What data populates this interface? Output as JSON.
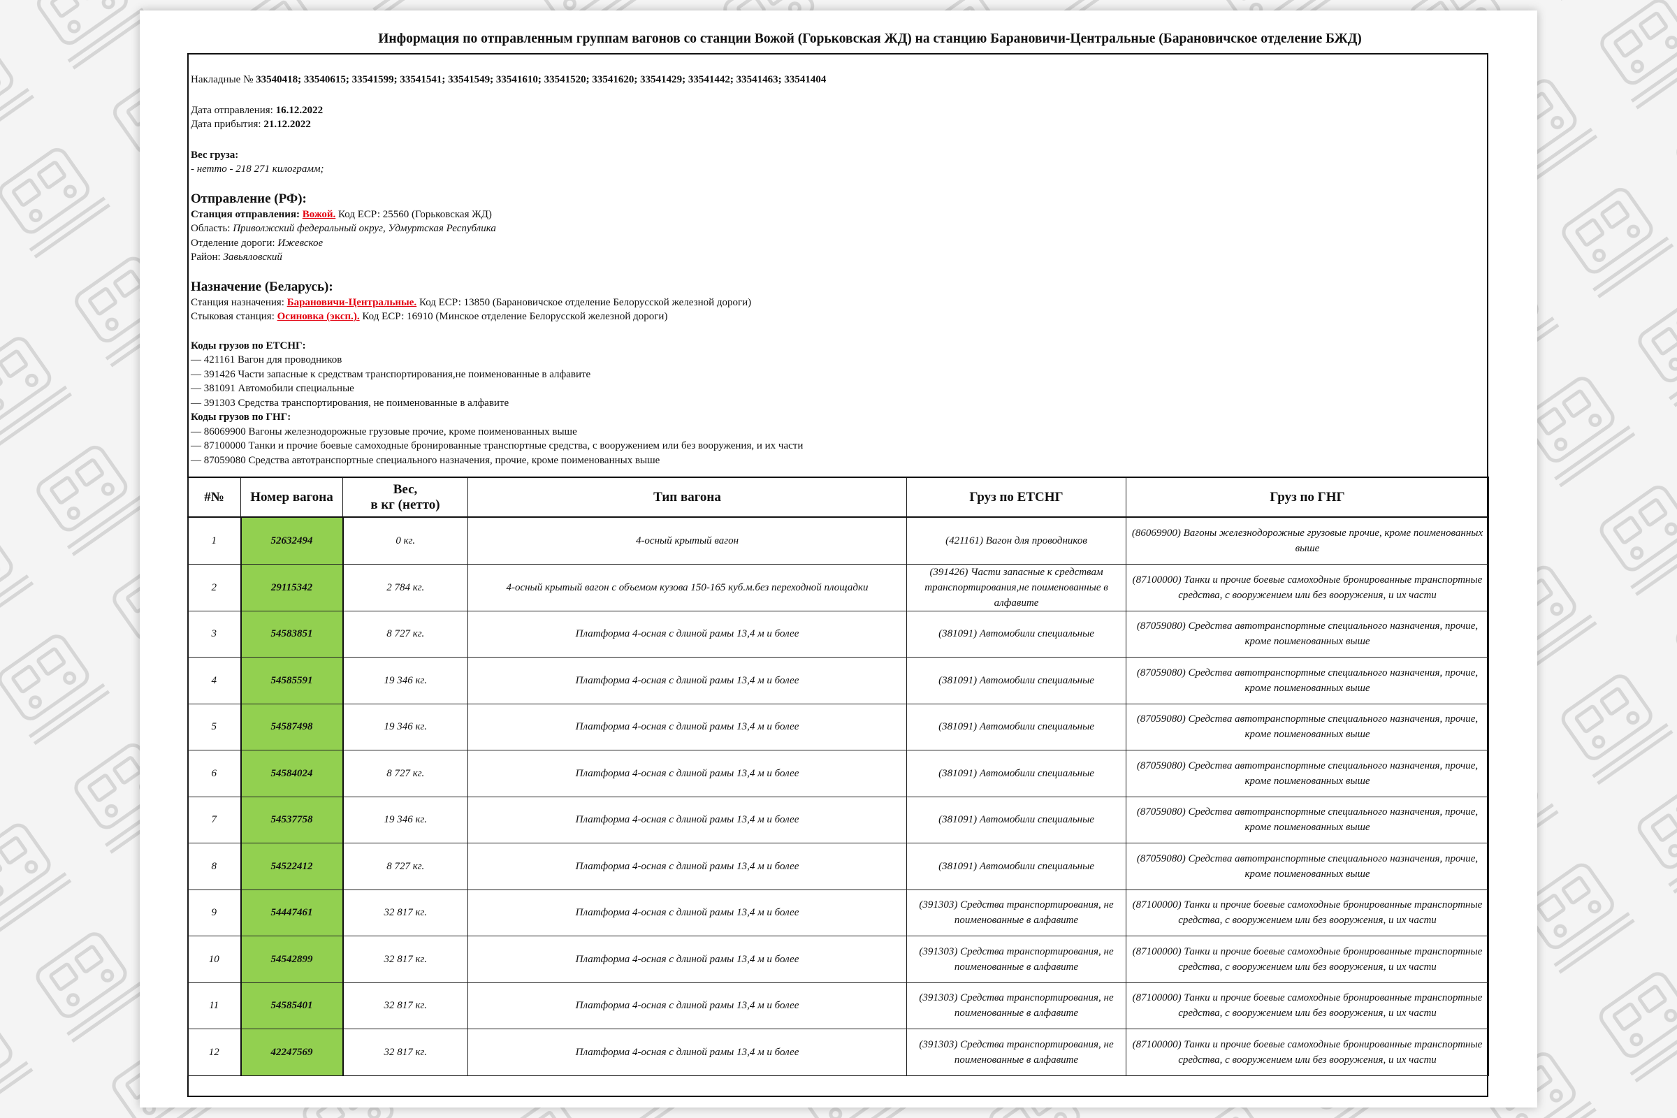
{
  "title": "Информация по отправленным группам вагонов со станции Вожой (Горьковская ЖД) на станцию Барановичи-Центральные (Барановичское отделение БЖД)",
  "waybills": {
    "label": "Накладные № ",
    "value": "33540418; 33540615; 33541599; 33541541; 33541549; 33541610; 33541520; 33541620; 33541429; 33541442; 33541463; 33541404"
  },
  "dates": {
    "departure_label": "Дата отправления: ",
    "departure": "16.12.2022",
    "arrival_label": "Дата прибытия: ",
    "arrival": "21.12.2022"
  },
  "weight": {
    "label": "Вес груза:",
    "net": "- нетто - 218 271 килограмм;"
  },
  "origin": {
    "heading": "Отправление (РФ):",
    "station_label": "Станция отправления: ",
    "station": "Вожой.",
    "station_code": " Код ЕСР: 25560 (Горьковская ЖД)",
    "region_label": "Область: ",
    "region": "Приволжский федеральный округ, Удмуртская Республика",
    "division_label": "Отделение дороги: ",
    "division": "Ижевское",
    "district_label": "Район: ",
    "district": "Завьяловский"
  },
  "destination": {
    "heading": "Назначение (Беларусь):",
    "station_label": "Станция назначения: ",
    "station": "Барановичи-Центральные.",
    "station_code": " Код ЕСР: 13850 (Барановичское отделение Белорусской железной дороги)",
    "junction_label": "Стыковая станция: ",
    "junction": "Осиновка (эксп.).",
    "junction_code": " Код ЕСР: 16910 (Минское отделение Белорусской железной дороги)"
  },
  "etsng": {
    "heading": "Коды грузов по ЕТСНГ:",
    "items": [
      "— 421161 Вагон для проводников",
      "— 391426 Части запасные к средствам транспортирования,не поименованные в алфавите",
      "— 381091 Автомобили специальные",
      "— 391303 Средства транспортирования, не поименованные в алфавите"
    ]
  },
  "gng": {
    "heading": "Коды грузов по ГНГ:",
    "items": [
      "— 86069900 Вагоны железнодорожные грузовые прочие, кроме поименованных выше",
      "— 87100000 Танки и прочие боевые самоходные бронированные транспортные средства, с вооружением или без вооружения, и их части",
      "— 87059080 Средства автотранспортные специального назначения, прочие, кроме поименованных выше"
    ]
  },
  "table": {
    "headers": [
      "#№",
      "Номер вагона",
      "Вес,\nв кг (нетто)",
      "Тип вагона",
      "Груз по ЕТСНГ",
      "Груз по ГНГ"
    ],
    "rows": [
      [
        "1",
        "52632494",
        "0 кг.",
        "4-осный крытый вагон",
        "(421161) Вагон для проводников",
        "(86069900) Вагоны железнодорожные грузовые прочие, кроме поименованных выше"
      ],
      [
        "2",
        "29115342",
        "2 784 кг.",
        "4-осный крытый вагон с объемом кузова 150-165 куб.м.без переходной площадки",
        "(391426) Части запасные к средствам транспортирования,не поименованные в алфавите",
        "(87100000) Танки и прочие боевые самоходные бронированные транспортные средства, с вооружением или без вооружения, и их части"
      ],
      [
        "3",
        "54583851",
        "8 727 кг.",
        "Платформа 4-осная с длиной рамы 13,4 м и более",
        "(381091) Автомобили специальные",
        "(87059080) Средства автотранспортные специального назначения, прочие, кроме поименованных выше"
      ],
      [
        "4",
        "54585591",
        "19 346 кг.",
        "Платформа 4-осная с длиной рамы 13,4 м и более",
        "(381091) Автомобили специальные",
        "(87059080) Средства автотранспортные специального назначения, прочие, кроме поименованных выше"
      ],
      [
        "5",
        "54587498",
        "19 346 кг.",
        "Платформа 4-осная с длиной рамы 13,4 м и более",
        "(381091) Автомобили специальные",
        "(87059080) Средства автотранспортные специального назначения, прочие, кроме поименованных выше"
      ],
      [
        "6",
        "54584024",
        "8 727 кг.",
        "Платформа 4-осная с длиной рамы 13,4 м и более",
        "(381091) Автомобили специальные",
        "(87059080) Средства автотранспортные специального назначения, прочие, кроме поименованных выше"
      ],
      [
        "7",
        "54537758",
        "19 346 кг.",
        "Платформа 4-осная с длиной рамы 13,4 м и более",
        "(381091) Автомобили специальные",
        "(87059080) Средства автотранспортные специального назначения, прочие, кроме поименованных выше"
      ],
      [
        "8",
        "54522412",
        "8 727 кг.",
        "Платформа 4-осная с длиной рамы 13,4 м и более",
        "(381091) Автомобили специальные",
        "(87059080) Средства автотранспортные специального назначения, прочие, кроме поименованных выше"
      ],
      [
        "9",
        "54447461",
        "32 817 кг.",
        "Платформа 4-осная с длиной рамы 13,4 м и более",
        "(391303) Средства транспортирования, не поименованные в алфавите",
        "(87100000) Танки и прочие боевые самоходные бронированные транспортные средства, с вооружением или без вооружения, и их части"
      ],
      [
        "10",
        "54542899",
        "32 817 кг.",
        "Платформа 4-осная с длиной рамы 13,4 м и более",
        "(391303) Средства транспортирования, не поименованные в алфавите",
        "(87100000) Танки и прочие боевые самоходные бронированные транспортные средства, с вооружением или без вооружения, и их части"
      ],
      [
        "11",
        "54585401",
        "32 817 кг.",
        "Платформа 4-осная с длиной рамы 13,4 м и более",
        "(391303) Средства транспортирования, не поименованные в алфавите",
        "(87100000) Танки и прочие боевые самоходные бронированные транспортные средства, с вооружением или без вооружения, и их части"
      ],
      [
        "12",
        "42247569",
        "32 817 кг.",
        "Платформа 4-осная с длиной рамы 13,4 м и более",
        "(391303) Средства транспортирования, не поименованные в алфавите",
        "(87100000) Танки и прочие боевые самоходные бронированные транспортные средства, с вооружением или без вооружения, и их части"
      ]
    ]
  },
  "colors": {
    "wagon_cell": "#92d050",
    "link": "#e3000f",
    "watermark": "#d6d6d6"
  },
  "background_icon": "train-icon-pattern"
}
